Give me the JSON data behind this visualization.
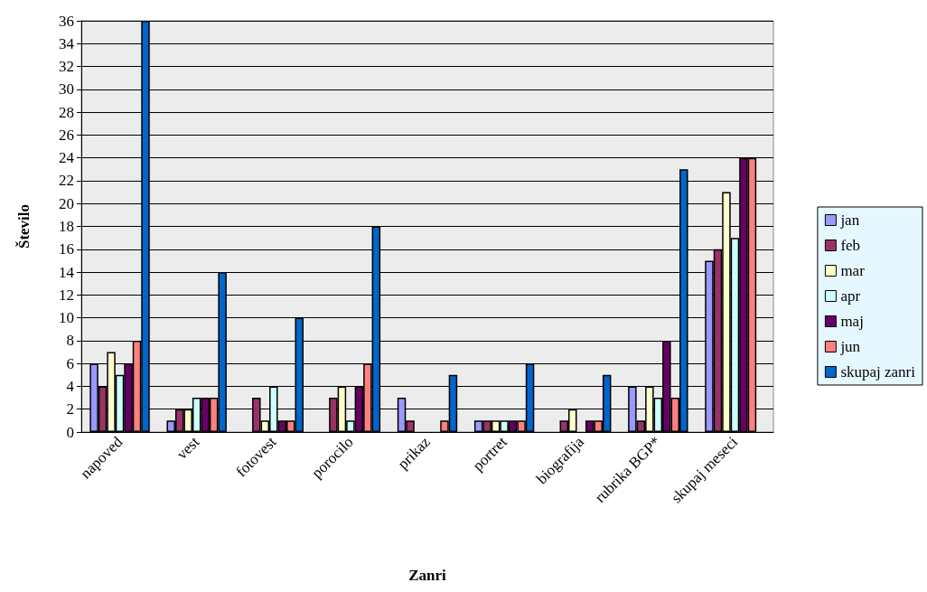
{
  "chart_data": {
    "type": "bar",
    "xlabel": "Zanri",
    "ylabel": "Število",
    "categories": [
      "napoved",
      "vest",
      "fotovest",
      "porocilo",
      "prikaz",
      "portret",
      "biografija",
      "rubrika BGP*",
      "skupaj meseci"
    ],
    "series": [
      {
        "name": "jan",
        "color": "#9999ff",
        "values": [
          6,
          1,
          null,
          null,
          3,
          1,
          null,
          4,
          15
        ]
      },
      {
        "name": "feb",
        "color": "#993366",
        "values": [
          4,
          2,
          3,
          3,
          1,
          1,
          1,
          1,
          16
        ]
      },
      {
        "name": "mar",
        "color": "#ffffcc",
        "values": [
          7,
          2,
          1,
          4,
          null,
          1,
          2,
          4,
          21
        ]
      },
      {
        "name": "apr",
        "color": "#ccffff",
        "values": [
          5,
          3,
          4,
          1,
          null,
          1,
          null,
          3,
          17
        ]
      },
      {
        "name": "maj",
        "color": "#660066",
        "values": [
          6,
          3,
          1,
          4,
          null,
          1,
          1,
          8,
          24
        ]
      },
      {
        "name": "jun",
        "color": "#ff8080",
        "values": [
          8,
          3,
          1,
          6,
          1,
          1,
          1,
          3,
          24
        ]
      },
      {
        "name": "skupaj zanri",
        "color": "#0066cc",
        "values": [
          36,
          14,
          10,
          18,
          5,
          6,
          5,
          23,
          null
        ]
      }
    ],
    "ylim": [
      0,
      36
    ],
    "yticks": [
      0,
      2,
      4,
      6,
      8,
      10,
      12,
      14,
      16,
      18,
      20,
      22,
      24,
      26,
      28,
      30,
      32,
      34,
      36
    ],
    "grid": "y",
    "legend": "right"
  }
}
